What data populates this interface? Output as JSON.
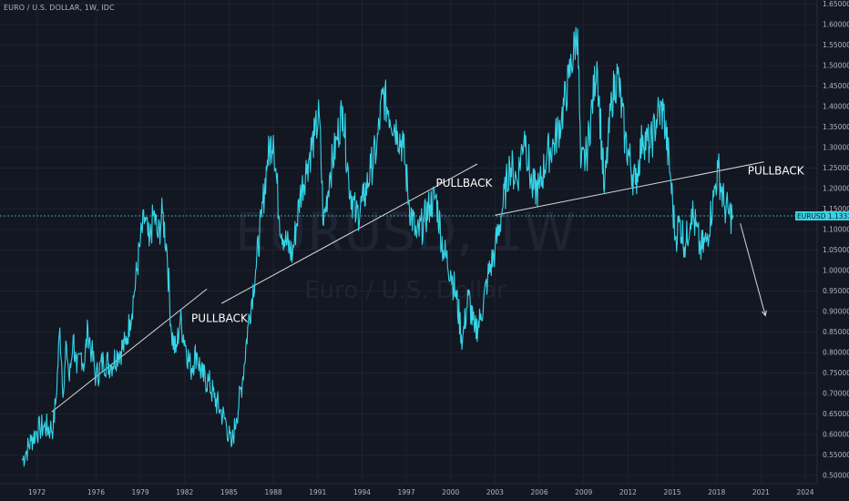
{
  "header": {
    "symbol_line": "EURO / U.S. DOLLAR, 1W, IDC"
  },
  "watermark": {
    "symbol": "EURUSD, 1W",
    "description": "Euro / U.S. Dollar"
  },
  "colors": {
    "background": "#131722",
    "grid": "#1e2230",
    "price_line": "#35d4e6",
    "trendline": "#d8d8d8",
    "tag": "#35d4e6"
  },
  "current_price": {
    "label": "EURUSD",
    "value": "1.13330",
    "value_num": 1.1333
  },
  "chart_data": {
    "type": "line",
    "title": "",
    "xlabel": "",
    "ylabel": "",
    "xlim": [
      1969.5,
      2024.8
    ],
    "ylim": [
      0.48,
      1.66
    ],
    "grid": true,
    "x_ticks": [
      "1972",
      "1976",
      "1979",
      "1982",
      "1985",
      "1988",
      "1991",
      "1994",
      "1997",
      "2000",
      "2003",
      "2006",
      "2009",
      "2012",
      "2015",
      "2018",
      "2021",
      "2024"
    ],
    "y_ticks": [
      "0.50000",
      "0.55000",
      "0.60000",
      "0.65000",
      "0.70000",
      "0.75000",
      "0.80000",
      "0.85000",
      "0.90000",
      "0.95000",
      "1.00000",
      "1.05000",
      "1.10000",
      "1.15000",
      "1.20000",
      "1.25000",
      "1.30000",
      "1.35000",
      "1.40000",
      "1.45000",
      "1.50000",
      "1.55000",
      "1.60000",
      "1.65000"
    ],
    "series": [
      {
        "points": [
          [
            1971.0,
            0.537
          ],
          [
            1971.3,
            0.56
          ],
          [
            1971.6,
            0.585
          ],
          [
            1971.9,
            0.603
          ],
          [
            1972.2,
            0.615
          ],
          [
            1972.5,
            0.62
          ],
          [
            1972.9,
            0.614
          ],
          [
            1973.1,
            0.618
          ],
          [
            1973.3,
            0.69
          ],
          [
            1973.55,
            0.86
          ],
          [
            1973.8,
            0.7
          ],
          [
            1974.0,
            0.82
          ],
          [
            1974.2,
            0.73
          ],
          [
            1974.45,
            0.84
          ],
          [
            1974.7,
            0.75
          ],
          [
            1975.0,
            0.8
          ],
          [
            1975.2,
            0.77
          ],
          [
            1975.45,
            0.86
          ],
          [
            1975.7,
            0.8
          ],
          [
            1976.0,
            0.74
          ],
          [
            1976.5,
            0.78
          ],
          [
            1977.0,
            0.77
          ],
          [
            1977.5,
            0.8
          ],
          [
            1978.0,
            0.82
          ],
          [
            1978.3,
            0.88
          ],
          [
            1978.6,
            0.95
          ],
          [
            1979.0,
            1.07
          ],
          [
            1979.3,
            1.13
          ],
          [
            1979.6,
            1.06
          ],
          [
            1979.9,
            1.14
          ],
          [
            1980.2,
            1.08
          ],
          [
            1980.5,
            1.14
          ],
          [
            1980.8,
            1.05
          ],
          [
            1981.1,
            0.85
          ],
          [
            1981.4,
            0.8
          ],
          [
            1981.7,
            0.88
          ],
          [
            1982.0,
            0.83
          ],
          [
            1982.4,
            0.76
          ],
          [
            1982.8,
            0.8
          ],
          [
            1983.2,
            0.74
          ],
          [
            1983.6,
            0.73
          ],
          [
            1984.0,
            0.69
          ],
          [
            1984.4,
            0.66
          ],
          [
            1984.8,
            0.63
          ],
          [
            1985.15,
            0.57
          ],
          [
            1985.5,
            0.64
          ],
          [
            1985.9,
            0.73
          ],
          [
            1986.3,
            0.87
          ],
          [
            1986.8,
            1.0
          ],
          [
            1987.2,
            1.13
          ],
          [
            1987.6,
            1.27
          ],
          [
            1988.0,
            1.33
          ],
          [
            1988.4,
            1.13
          ],
          [
            1988.8,
            1.07
          ],
          [
            1989.3,
            1.04
          ],
          [
            1989.8,
            1.18
          ],
          [
            1990.3,
            1.26
          ],
          [
            1990.8,
            1.33
          ],
          [
            1991.1,
            1.38
          ],
          [
            1991.4,
            1.11
          ],
          [
            1991.8,
            1.23
          ],
          [
            1992.3,
            1.32
          ],
          [
            1992.7,
            1.4
          ],
          [
            1993.1,
            1.22
          ],
          [
            1993.6,
            1.13
          ],
          [
            1994.1,
            1.17
          ],
          [
            1994.6,
            1.25
          ],
          [
            1995.0,
            1.3
          ],
          [
            1995.4,
            1.43
          ],
          [
            1995.8,
            1.39
          ],
          [
            1996.4,
            1.34
          ],
          [
            1996.8,
            1.3
          ],
          [
            1997.2,
            1.16
          ],
          [
            1997.7,
            1.08
          ],
          [
            1998.2,
            1.12
          ],
          [
            1998.6,
            1.16
          ],
          [
            1999.0,
            1.18
          ],
          [
            1999.5,
            1.05
          ],
          [
            2000.0,
            1.0
          ],
          [
            2000.4,
            0.93
          ],
          [
            2000.8,
            0.83
          ],
          [
            2001.2,
            0.94
          ],
          [
            2001.6,
            0.85
          ],
          [
            2002.0,
            0.88
          ],
          [
            2002.5,
            0.98
          ],
          [
            2003.0,
            1.05
          ],
          [
            2003.5,
            1.15
          ],
          [
            2004.0,
            1.26
          ],
          [
            2004.5,
            1.22
          ],
          [
            2005.0,
            1.34
          ],
          [
            2005.5,
            1.2
          ],
          [
            2006.0,
            1.2
          ],
          [
            2006.5,
            1.28
          ],
          [
            2007.0,
            1.31
          ],
          [
            2007.5,
            1.37
          ],
          [
            2008.0,
            1.47
          ],
          [
            2008.6,
            1.59
          ],
          [
            2008.8,
            1.25
          ],
          [
            2009.2,
            1.28
          ],
          [
            2009.9,
            1.51
          ],
          [
            2010.4,
            1.19
          ],
          [
            2010.9,
            1.42
          ],
          [
            2011.3,
            1.48
          ],
          [
            2011.8,
            1.32
          ],
          [
            2012.5,
            1.21
          ],
          [
            2013.0,
            1.33
          ],
          [
            2013.5,
            1.3
          ],
          [
            2014.0,
            1.38
          ],
          [
            2014.4,
            1.39
          ],
          [
            2014.9,
            1.22
          ],
          [
            2015.2,
            1.08
          ],
          [
            2015.5,
            1.12
          ],
          [
            2015.9,
            1.06
          ],
          [
            2016.3,
            1.15
          ],
          [
            2016.9,
            1.05
          ],
          [
            2017.3,
            1.07
          ],
          [
            2017.8,
            1.18
          ],
          [
            2018.1,
            1.25
          ],
          [
            2018.5,
            1.16
          ],
          [
            2018.8,
            1.14
          ],
          [
            2019.1,
            1.133
          ]
        ]
      }
    ],
    "trendlines": [
      {
        "from": [
          1973.0,
          0.655
        ],
        "to": [
          1983.5,
          0.955
        ]
      },
      {
        "from": [
          1984.5,
          0.92
        ],
        "to": [
          2001.8,
          1.26
        ]
      },
      {
        "from": [
          2003.0,
          1.135
        ],
        "to": [
          2021.2,
          1.265
        ]
      }
    ],
    "projection_arrow": {
      "from": [
        2019.6,
        1.115
      ],
      "to": [
        2021.3,
        0.89
      ]
    },
    "annotations": [
      {
        "text": "PULLBACK",
        "x": 1982.45,
        "y": 0.875
      },
      {
        "text": "PULLBACK",
        "x": 1999.0,
        "y": 1.205
      },
      {
        "text": "PULLBACK",
        "x": 2020.1,
        "y": 1.235
      }
    ]
  }
}
